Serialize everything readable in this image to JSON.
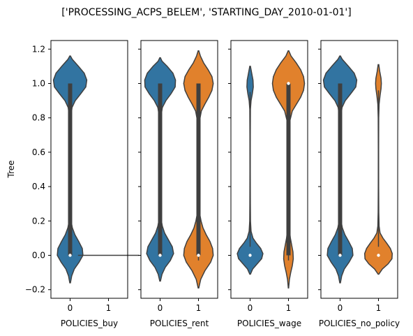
{
  "title": "['PROCESSING_ACPS_BELEM', 'STARTING_DAY_2010-01-01']",
  "ylabel": "Tree",
  "colors": {
    "series0": "#3274a1",
    "series1": "#e1812c",
    "box": "#3f3f3f",
    "median": "#ffffff"
  },
  "chart_data": [
    {
      "type": "violin",
      "xlabel": "POLICIES_buy",
      "categories": [
        "0",
        "1"
      ],
      "ylim": [
        -0.25,
        1.25
      ],
      "yticks": [
        -0.2,
        0.0,
        0.2,
        0.4,
        0.6,
        0.8,
        1.0,
        1.2
      ],
      "ytick_labels": [
        "−0.2",
        "0.0",
        "0.2",
        "0.4",
        "0.6",
        "0.8",
        "1.0",
        "1.2"
      ],
      "show_ytick_labels": true,
      "violins": [
        {
          "category": "0",
          "color": "#3274a1",
          "min": -0.16,
          "max": 1.16,
          "q1": 0.0,
          "median": 0.0,
          "q3": 1.0,
          "profile": [
            [
              -0.16,
              0.01
            ],
            [
              -0.12,
              0.05
            ],
            [
              -0.08,
              0.13
            ],
            [
              -0.04,
              0.28
            ],
            [
              0.0,
              0.4
            ],
            [
              0.04,
              0.38
            ],
            [
              0.08,
              0.27
            ],
            [
              0.12,
              0.15
            ],
            [
              0.16,
              0.07
            ],
            [
              0.2,
              0.03
            ],
            [
              0.25,
              0.012
            ],
            [
              0.3,
              0.008
            ],
            [
              0.5,
              0.005
            ],
            [
              0.7,
              0.008
            ],
            [
              0.8,
              0.02
            ],
            [
              0.86,
              0.06
            ],
            [
              0.9,
              0.16
            ],
            [
              0.94,
              0.33
            ],
            [
              0.98,
              0.49
            ],
            [
              1.02,
              0.52
            ],
            [
              1.06,
              0.44
            ],
            [
              1.1,
              0.26
            ],
            [
              1.14,
              0.07
            ],
            [
              1.16,
              0.01
            ]
          ]
        },
        {
          "category": "1",
          "color": "#e1812c",
          "min": 0.0,
          "max": 0.0,
          "q1": 0.0,
          "median": 0.0,
          "q3": 0.0,
          "degenerate": true,
          "profile": []
        }
      ]
    },
    {
      "type": "violin",
      "xlabel": "POLICIES_rent",
      "categories": [
        "0",
        "1"
      ],
      "ylim": [
        -0.25,
        1.25
      ],
      "yticks": [
        -0.2,
        0.0,
        0.2,
        0.4,
        0.6,
        0.8,
        1.0,
        1.2
      ],
      "ytick_labels": [],
      "show_ytick_labels": false,
      "violins": [
        {
          "category": "0",
          "color": "#3274a1",
          "min": -0.15,
          "max": 1.15,
          "q1": 0.0,
          "median": 0.0,
          "q3": 1.0,
          "profile": [
            [
              -0.15,
              0.01
            ],
            [
              -0.11,
              0.06
            ],
            [
              -0.07,
              0.16
            ],
            [
              -0.03,
              0.32
            ],
            [
              0.01,
              0.42
            ],
            [
              0.05,
              0.38
            ],
            [
              0.09,
              0.26
            ],
            [
              0.13,
              0.14
            ],
            [
              0.17,
              0.07
            ],
            [
              0.21,
              0.03
            ],
            [
              0.26,
              0.012
            ],
            [
              0.3,
              0.008
            ],
            [
              0.5,
              0.005
            ],
            [
              0.7,
              0.008
            ],
            [
              0.8,
              0.02
            ],
            [
              0.86,
              0.07
            ],
            [
              0.9,
              0.18
            ],
            [
              0.94,
              0.34
            ],
            [
              0.98,
              0.47
            ],
            [
              1.02,
              0.48
            ],
            [
              1.06,
              0.4
            ],
            [
              1.1,
              0.22
            ],
            [
              1.13,
              0.06
            ],
            [
              1.15,
              0.01
            ]
          ]
        },
        {
          "category": "1",
          "color": "#e1812c",
          "min": -0.19,
          "max": 1.19,
          "q1": 0.0,
          "median": 0.0,
          "q3": 1.0,
          "profile": [
            [
              -0.19,
              0.01
            ],
            [
              -0.14,
              0.07
            ],
            [
              -0.09,
              0.2
            ],
            [
              -0.04,
              0.38
            ],
            [
              0.0,
              0.46
            ],
            [
              0.04,
              0.44
            ],
            [
              0.08,
              0.36
            ],
            [
              0.12,
              0.24
            ],
            [
              0.16,
              0.14
            ],
            [
              0.2,
              0.08
            ],
            [
              0.25,
              0.03
            ],
            [
              0.3,
              0.012
            ],
            [
              0.5,
              0.006
            ],
            [
              0.7,
              0.01
            ],
            [
              0.78,
              0.03
            ],
            [
              0.84,
              0.09
            ],
            [
              0.88,
              0.2
            ],
            [
              0.92,
              0.32
            ],
            [
              0.96,
              0.42
            ],
            [
              1.0,
              0.46
            ],
            [
              1.04,
              0.42
            ],
            [
              1.08,
              0.3
            ],
            [
              1.12,
              0.16
            ],
            [
              1.16,
              0.06
            ],
            [
              1.19,
              0.01
            ]
          ]
        }
      ]
    },
    {
      "type": "violin",
      "xlabel": "POLICIES_wage",
      "categories": [
        "0",
        "1"
      ],
      "ylim": [
        -0.25,
        1.25
      ],
      "yticks": [
        -0.2,
        0.0,
        0.2,
        0.4,
        0.6,
        0.8,
        1.0,
        1.2
      ],
      "ytick_labels": [],
      "show_ytick_labels": false,
      "violins": [
        {
          "category": "0",
          "color": "#3274a1",
          "min": -0.11,
          "max": 1.1,
          "q1": 0.0,
          "median": 0.0,
          "q3": 0.0,
          "no_box": true,
          "profile": [
            [
              -0.11,
              0.01
            ],
            [
              -0.08,
              0.08
            ],
            [
              -0.05,
              0.22
            ],
            [
              -0.02,
              0.36
            ],
            [
              0.01,
              0.4
            ],
            [
              0.04,
              0.33
            ],
            [
              0.07,
              0.2
            ],
            [
              0.1,
              0.09
            ],
            [
              0.14,
              0.03
            ],
            [
              0.2,
              0.012
            ],
            [
              0.3,
              0.008
            ],
            [
              0.5,
              0.005
            ],
            [
              0.7,
              0.006
            ],
            [
              0.85,
              0.01
            ],
            [
              0.9,
              0.03
            ],
            [
              0.94,
              0.07
            ],
            [
              0.98,
              0.1
            ],
            [
              1.02,
              0.09
            ],
            [
              1.06,
              0.05
            ],
            [
              1.1,
              0.01
            ]
          ]
        },
        {
          "category": "1",
          "color": "#e1812c",
          "min": -0.19,
          "max": 1.19,
          "q1": 0.0,
          "median": 1.0,
          "q3": 1.0,
          "profile": [
            [
              -0.19,
              0.005
            ],
            [
              -0.14,
              0.03
            ],
            [
              -0.1,
              0.07
            ],
            [
              -0.06,
              0.12
            ],
            [
              -0.02,
              0.15
            ],
            [
              0.02,
              0.14
            ],
            [
              0.06,
              0.1
            ],
            [
              0.1,
              0.06
            ],
            [
              0.15,
              0.03
            ],
            [
              0.2,
              0.012
            ],
            [
              0.3,
              0.008
            ],
            [
              0.5,
              0.008
            ],
            [
              0.7,
              0.015
            ],
            [
              0.78,
              0.04
            ],
            [
              0.84,
              0.12
            ],
            [
              0.88,
              0.25
            ],
            [
              0.92,
              0.38
            ],
            [
              0.96,
              0.47
            ],
            [
              1.0,
              0.5
            ],
            [
              1.04,
              0.47
            ],
            [
              1.08,
              0.38
            ],
            [
              1.12,
              0.24
            ],
            [
              1.16,
              0.08
            ],
            [
              1.19,
              0.01
            ]
          ]
        }
      ]
    },
    {
      "type": "violin",
      "xlabel": "POLICIES_no_policy",
      "categories": [
        "0",
        "1"
      ],
      "ylim": [
        -0.25,
        1.25
      ],
      "yticks": [
        -0.2,
        0.0,
        0.2,
        0.4,
        0.6,
        0.8,
        1.0,
        1.2
      ],
      "ytick_labels": [],
      "show_ytick_labels": false,
      "violins": [
        {
          "category": "0",
          "color": "#3274a1",
          "min": -0.16,
          "max": 1.16,
          "q1": 0.0,
          "median": 0.0,
          "q3": 1.0,
          "profile": [
            [
              -0.16,
              0.01
            ],
            [
              -0.12,
              0.05
            ],
            [
              -0.08,
              0.13
            ],
            [
              -0.04,
              0.28
            ],
            [
              0.0,
              0.4
            ],
            [
              0.04,
              0.38
            ],
            [
              0.08,
              0.27
            ],
            [
              0.12,
              0.15
            ],
            [
              0.16,
              0.07
            ],
            [
              0.2,
              0.03
            ],
            [
              0.25,
              0.012
            ],
            [
              0.3,
              0.008
            ],
            [
              0.5,
              0.005
            ],
            [
              0.7,
              0.008
            ],
            [
              0.8,
              0.02
            ],
            [
              0.86,
              0.06
            ],
            [
              0.9,
              0.16
            ],
            [
              0.94,
              0.33
            ],
            [
              0.98,
              0.49
            ],
            [
              1.02,
              0.52
            ],
            [
              1.06,
              0.44
            ],
            [
              1.1,
              0.26
            ],
            [
              1.14,
              0.07
            ],
            [
              1.16,
              0.01
            ]
          ]
        },
        {
          "category": "1",
          "color": "#e1812c",
          "min": -0.11,
          "max": 1.11,
          "q1": 0.0,
          "median": 0.0,
          "q3": 0.0,
          "no_box": true,
          "profile": [
            [
              -0.11,
              0.01
            ],
            [
              -0.08,
              0.12
            ],
            [
              -0.05,
              0.3
            ],
            [
              -0.02,
              0.42
            ],
            [
              0.01,
              0.43
            ],
            [
              0.04,
              0.37
            ],
            [
              0.07,
              0.26
            ],
            [
              0.1,
              0.14
            ],
            [
              0.13,
              0.05
            ],
            [
              0.17,
              0.02
            ],
            [
              0.25,
              0.01
            ],
            [
              0.4,
              0.006
            ],
            [
              0.6,
              0.005
            ],
            [
              0.8,
              0.008
            ],
            [
              0.88,
              0.02
            ],
            [
              0.93,
              0.05
            ],
            [
              0.97,
              0.08
            ],
            [
              1.0,
              0.09
            ],
            [
              1.03,
              0.08
            ],
            [
              1.07,
              0.04
            ],
            [
              1.11,
              0.01
            ]
          ]
        }
      ]
    }
  ]
}
